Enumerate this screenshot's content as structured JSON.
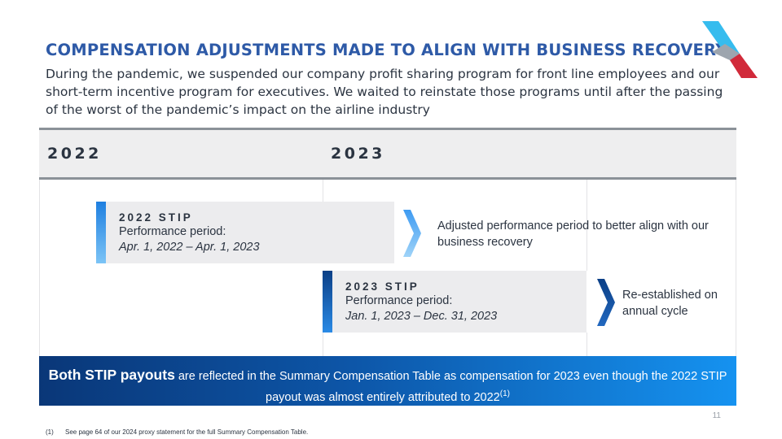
{
  "header": {
    "title": "COMPENSATION ADJUSTMENTS MADE TO ALIGN WITH BUSINESS RECOVERY",
    "subtitle": "During the pandemic, we suspended our company profit sharing program for front line employees and our short-term incentive program for executives. We waited to reinstate those programs until after the passing of the worst of the pandemic’s impact on the airline industry"
  },
  "logo": {
    "icon": "airline-logo",
    "colors": [
      "#36bcee",
      "#9da5ae",
      "#d12a3a"
    ]
  },
  "timeline": {
    "years": [
      "2022",
      "2023"
    ]
  },
  "stips": [
    {
      "title": "2022 STIP",
      "label": "Performance period:",
      "period": "Apr. 1, 2022 – Apr. 1, 2023",
      "accent": "#52a6f0",
      "note": "Adjusted performance period to better align with our business recovery"
    },
    {
      "title": "2023 STIP",
      "label": "Performance period:",
      "period": "Jan. 1, 2023 – Dec. 31, 2023",
      "accent": "#1264b8",
      "note": "Re-established on annual cycle"
    }
  ],
  "banner": {
    "strong": "Both STIP payouts",
    "text": " are reflected in the Summary Compensation Table as compensation for 2023 even though the 2022 STIP payout was almost entirely attributed to 2022",
    "footnote_ref": "(1)"
  },
  "page_number": "11",
  "footnote": {
    "marker": "(1)",
    "text": "See page 64 of our 2024 proxy statement for the full Summary Compensation Table."
  }
}
